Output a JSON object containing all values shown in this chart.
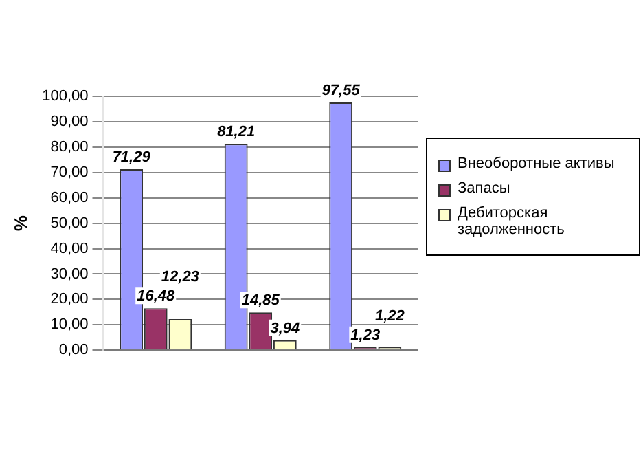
{
  "chart_data": {
    "type": "bar",
    "ylabel": "%",
    "categories": [
      null,
      null,
      null
    ],
    "series": [
      {
        "name": "Внеоборотные активы",
        "color": "#9999ff",
        "values": [
          71.29,
          81.21,
          97.55
        ],
        "value_labels": [
          "71,29",
          "81,21",
          "97,55"
        ]
      },
      {
        "name": "Запасы",
        "color": "#993366",
        "values": [
          16.48,
          14.85,
          1.23
        ],
        "value_labels": [
          "16,48",
          "14,85",
          "1,23"
        ]
      },
      {
        "name": "Дебиторская задолженность",
        "color": "#ffffcc",
        "values": [
          12.23,
          3.94,
          1.22
        ],
        "value_labels": [
          "12,23",
          "3,94",
          "1,22"
        ]
      }
    ],
    "ylim": [
      0,
      100
    ],
    "yticks": [
      {
        "value": 0,
        "label": "0,00"
      },
      {
        "value": 10,
        "label": "10,00"
      },
      {
        "value": 20,
        "label": "20,00"
      },
      {
        "value": 30,
        "label": "30,00"
      },
      {
        "value": 40,
        "label": "40,00"
      },
      {
        "value": 50,
        "label": "50,00"
      },
      {
        "value": 60,
        "label": "60,00"
      },
      {
        "value": 70,
        "label": "70,00"
      },
      {
        "value": 80,
        "label": "80,00"
      },
      {
        "value": 90,
        "label": "90,00"
      },
      {
        "value": 100,
        "label": "100,00"
      }
    ],
    "grid": "y",
    "legend": "right"
  }
}
